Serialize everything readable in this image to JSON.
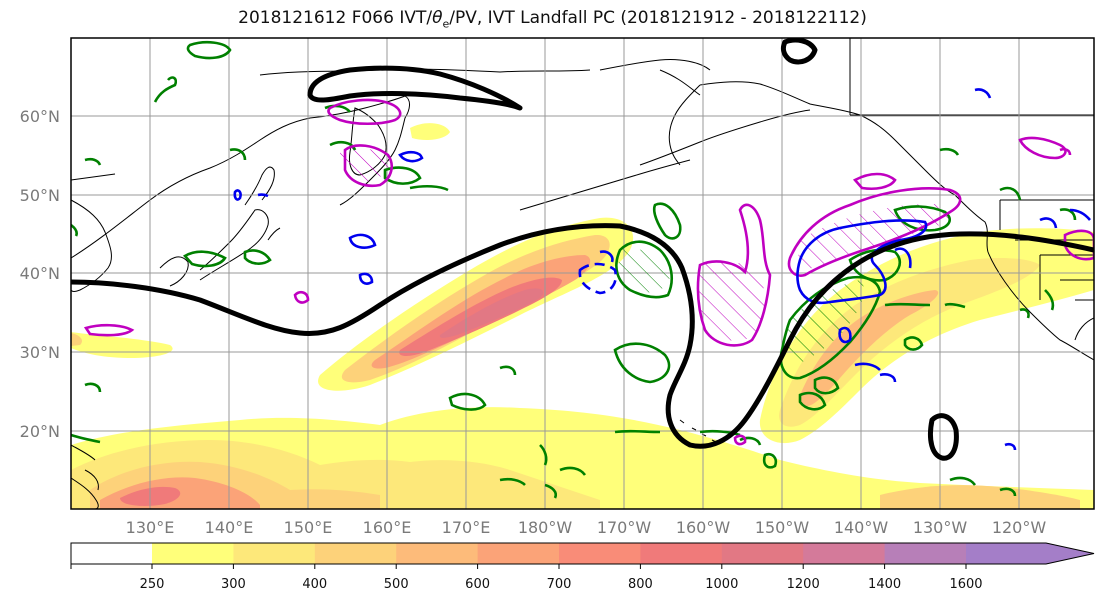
{
  "title": {
    "prefix": "2018121612 F066 IVT/",
    "theta": "θ",
    "sub": "e",
    "suffix": "/PV, IVT Landfall PC (2018121912 - 2018122112)"
  },
  "axes": {
    "lat_labels": [
      "60°N",
      "50°N",
      "40°N",
      "30°N",
      "20°N"
    ],
    "lon_labels": [
      "130°E",
      "140°E",
      "150°E",
      "160°E",
      "170°E",
      "180°W",
      "170°W",
      "160°W",
      "150°W",
      "140°W",
      "130°W",
      "120°W"
    ]
  },
  "colorbar": {
    "ticks": [
      "250",
      "300",
      "400",
      "500",
      "600",
      "700",
      "800",
      "1000",
      "1200",
      "1400",
      "1600"
    ],
    "colors": [
      "#ffff7a",
      "#fde87a",
      "#fdd27a",
      "#fdbb7a",
      "#fba378",
      "#f98c78",
      "#f07a7a",
      "#e27884",
      "#d47a9a",
      "#b77fb8",
      "#a47ec8"
    ]
  },
  "legend_colors": {
    "jet_contour": "#000000",
    "green_contour": "#008000",
    "blue_contour": "#0000ee",
    "magenta_contour": "#c000c0"
  }
}
